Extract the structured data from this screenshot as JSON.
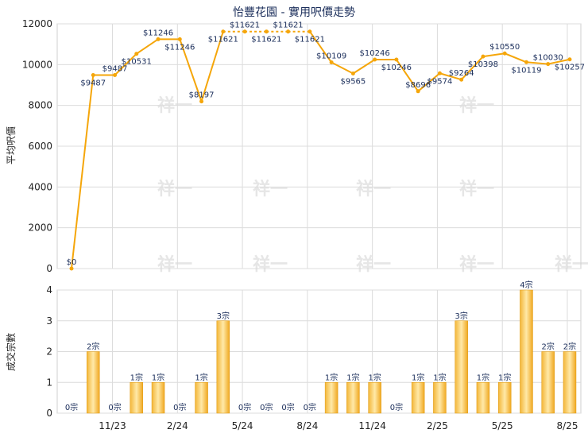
{
  "chart_data": {
    "title": "怡豐花園 - 實用呎價走勢",
    "watermark": "祥一",
    "price_chart": {
      "type": "line",
      "ylabel": "平均呎價",
      "ylim": [
        0,
        12000
      ],
      "yticks": [
        0,
        2000,
        4000,
        6000,
        8000,
        10000,
        12000
      ],
      "color": "#f5a60a",
      "values": [
        0,
        9487,
        9487,
        10531,
        11246,
        11246,
        8197,
        11621,
        11621,
        11621,
        11621,
        11621,
        10109,
        9565,
        10246,
        10246,
        8696,
        9574,
        9264,
        10398,
        10550,
        10119,
        10030,
        10257
      ],
      "labels": [
        "$0",
        "$9487",
        "$9487",
        "$10531",
        "$11246",
        "$11246",
        "$8197",
        "$11621",
        "$11621",
        "$11621",
        "$11621",
        "$11621",
        "$10109",
        "$9565",
        "$10246",
        "$10246",
        "$8696",
        "$9574",
        "$9264",
        "$10398",
        "$10550",
        "$10119",
        "$10030",
        "$10257"
      ],
      "dashed_segments": [
        7,
        8,
        9,
        10
      ]
    },
    "volume_chart": {
      "type": "bar",
      "ylabel": "成交宗數",
      "ylim": [
        0,
        4
      ],
      "yticks": [
        0,
        1,
        2,
        3,
        4
      ],
      "values": [
        0,
        2,
        0,
        1,
        1,
        0,
        1,
        3,
        0,
        0,
        0,
        0,
        1,
        1,
        1,
        0,
        1,
        1,
        3,
        1,
        1,
        4,
        2,
        2
      ],
      "labels": [
        "0宗",
        "2宗",
        "0宗",
        "1宗",
        "1宗",
        "0宗",
        "1宗",
        "3宗",
        "0宗",
        "0宗",
        "0宗",
        "0宗",
        "1宗",
        "1宗",
        "1宗",
        "0宗",
        "1宗",
        "1宗",
        "3宗",
        "1宗",
        "1宗",
        "4宗",
        "2宗",
        "2宗"
      ]
    },
    "x_ticks": [
      {
        "index": 2,
        "label": "11/23"
      },
      {
        "index": 5,
        "label": "2/24"
      },
      {
        "index": 8,
        "label": "5/24"
      },
      {
        "index": 11,
        "label": "8/24"
      },
      {
        "index": 14,
        "label": "11/24"
      },
      {
        "index": 17,
        "label": "2/25"
      },
      {
        "index": 20,
        "label": "5/25"
      },
      {
        "index": 23,
        "label": "8/25"
      }
    ]
  }
}
